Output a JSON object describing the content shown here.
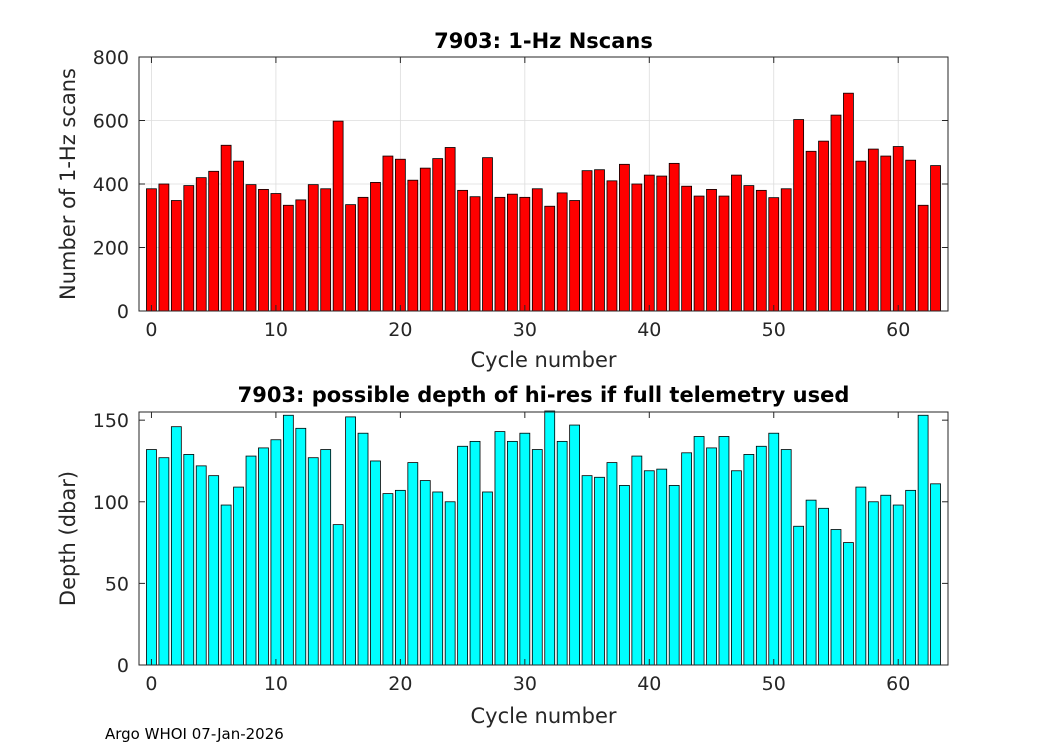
{
  "footer": "Argo WHOI 07-Jan-2026",
  "chart_data": [
    {
      "type": "bar",
      "title": "7903: 1-Hz Nscans",
      "xlabel": "Cycle number",
      "ylabel": "Number of 1-Hz scans",
      "xlim": [
        -1,
        64
      ],
      "ylim": [
        0,
        800
      ],
      "xticks": [
        0,
        10,
        20,
        30,
        40,
        50,
        60
      ],
      "yticks": [
        0,
        200,
        400,
        600,
        800
      ],
      "grid": true,
      "bar_color": "#ff0000",
      "x": [
        0,
        1,
        2,
        3,
        4,
        5,
        6,
        7,
        8,
        9,
        10,
        11,
        12,
        13,
        14,
        15,
        16,
        17,
        18,
        19,
        20,
        21,
        22,
        23,
        24,
        25,
        26,
        27,
        28,
        29,
        30,
        31,
        32,
        33,
        34,
        35,
        36,
        37,
        38,
        39,
        40,
        41,
        42,
        43,
        44,
        45,
        46,
        47,
        48,
        49,
        50,
        51,
        52,
        53,
        54,
        55,
        56,
        57,
        58,
        59,
        60,
        61,
        62,
        63
      ],
      "values": [
        385,
        400,
        348,
        395,
        420,
        440,
        522,
        472,
        398,
        383,
        370,
        333,
        350,
        398,
        385,
        598,
        335,
        358,
        405,
        488,
        478,
        412,
        450,
        480,
        515,
        380,
        360,
        483,
        358,
        368,
        358,
        385,
        330,
        372,
        348,
        442,
        445,
        410,
        462,
        400,
        428,
        425,
        465,
        393,
        362,
        383,
        362,
        428,
        395,
        380,
        357,
        385,
        603,
        503,
        535,
        617,
        686,
        472,
        510,
        488,
        518,
        475,
        333,
        458
      ]
    },
    {
      "type": "bar",
      "title": "7903: possible depth of hi-res if full telemetry used",
      "xlabel": "Cycle number",
      "ylabel": "Depth (dbar)",
      "xlim": [
        -1,
        64
      ],
      "ylim": [
        0,
        155
      ],
      "xticks": [
        0,
        10,
        20,
        30,
        40,
        50,
        60
      ],
      "yticks": [
        0,
        50,
        100,
        150
      ],
      "grid": false,
      "bar_color": "#00ffff",
      "x": [
        0,
        1,
        2,
        3,
        4,
        5,
        6,
        7,
        8,
        9,
        10,
        11,
        12,
        13,
        14,
        15,
        16,
        17,
        18,
        19,
        20,
        21,
        22,
        23,
        24,
        25,
        26,
        27,
        28,
        29,
        30,
        31,
        32,
        33,
        34,
        35,
        36,
        37,
        38,
        39,
        40,
        41,
        42,
        43,
        44,
        45,
        46,
        47,
        48,
        49,
        50,
        51,
        52,
        53,
        54,
        55,
        56,
        57,
        58,
        59,
        60,
        61,
        62,
        63
      ],
      "values": [
        132,
        127,
        146,
        129,
        122,
        116,
        98,
        109,
        128,
        133,
        138,
        153,
        145,
        127,
        132,
        86,
        152,
        142,
        125,
        105,
        107,
        124,
        113,
        106,
        100,
        134,
        137,
        106,
        143,
        137,
        142,
        132,
        156,
        137,
        147,
        116,
        115,
        124,
        110,
        128,
        119,
        120,
        110,
        130,
        140,
        133,
        140,
        119,
        129,
        134,
        142,
        132,
        85,
        101,
        96,
        83,
        75,
        109,
        100,
        104,
        98,
        107,
        153,
        111
      ]
    }
  ]
}
